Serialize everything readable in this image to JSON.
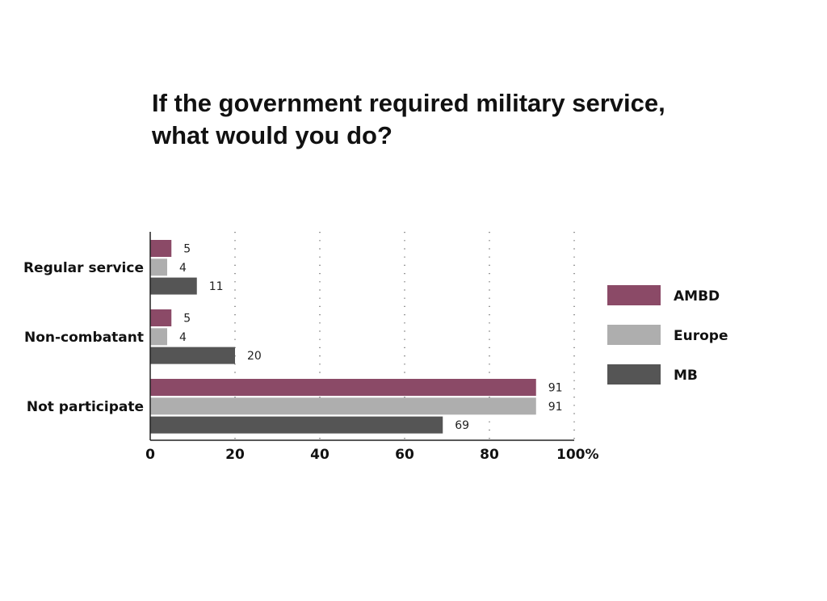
{
  "chart_data": {
    "type": "bar",
    "orientation": "horizontal",
    "title_lines": [
      "If the government required military service,",
      "what would you do?"
    ],
    "categories": [
      "Regular service",
      "Non-combatant",
      "Not participate"
    ],
    "series": [
      {
        "name": "AMBD",
        "color": "#8b4a67",
        "values": [
          5,
          5,
          91
        ]
      },
      {
        "name": "Europe",
        "color": "#aeaeae",
        "values": [
          4,
          4,
          91
        ]
      },
      {
        "name": "MB",
        "color": "#555555",
        "values": [
          11,
          20,
          69
        ]
      }
    ],
    "x_ticks": [
      "0",
      "20",
      "40",
      "60",
      "80",
      "100%"
    ],
    "xlim": [
      0,
      100
    ],
    "grid": "vertical dotted",
    "legend_position": "right"
  }
}
